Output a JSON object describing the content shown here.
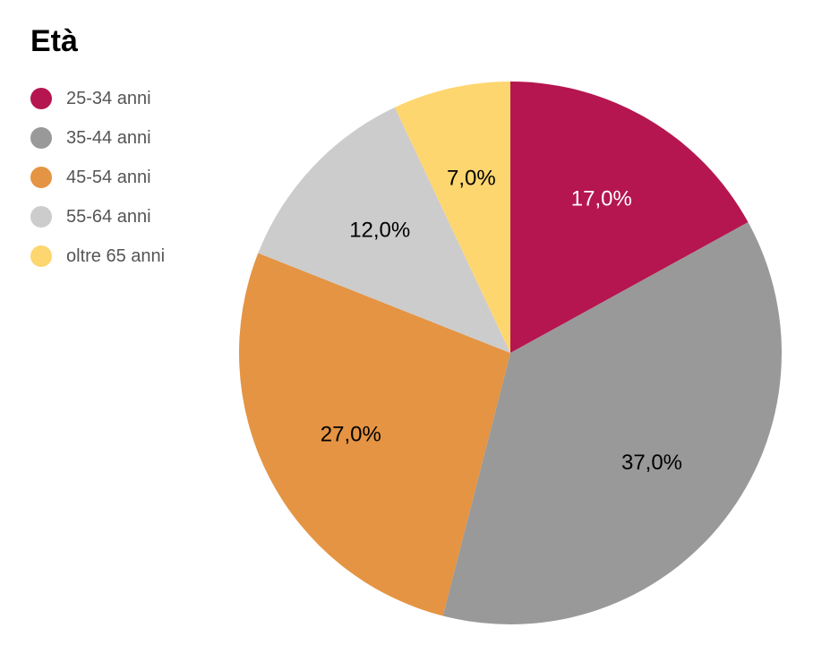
{
  "chart_data": {
    "type": "pie",
    "title": "Età",
    "legend_position": "top-left",
    "categories": [
      "25-34 anni",
      "35-44 anni",
      "45-54 anni",
      "55-64 anni",
      "oltre 65 anni"
    ],
    "values": [
      17.0,
      37.0,
      27.0,
      12.0,
      7.0
    ],
    "value_labels": [
      "17,0%",
      "37,0%",
      "27,0%",
      "12,0%",
      "7,0%"
    ],
    "colors": [
      "#b5164f",
      "#999999",
      "#e49443",
      "#cccccc",
      "#fed66f"
    ],
    "label_colors": [
      "#ffffff",
      "#000000",
      "#000000",
      "#000000",
      "#000000"
    ],
    "start": "top",
    "direction": "clockwise"
  }
}
